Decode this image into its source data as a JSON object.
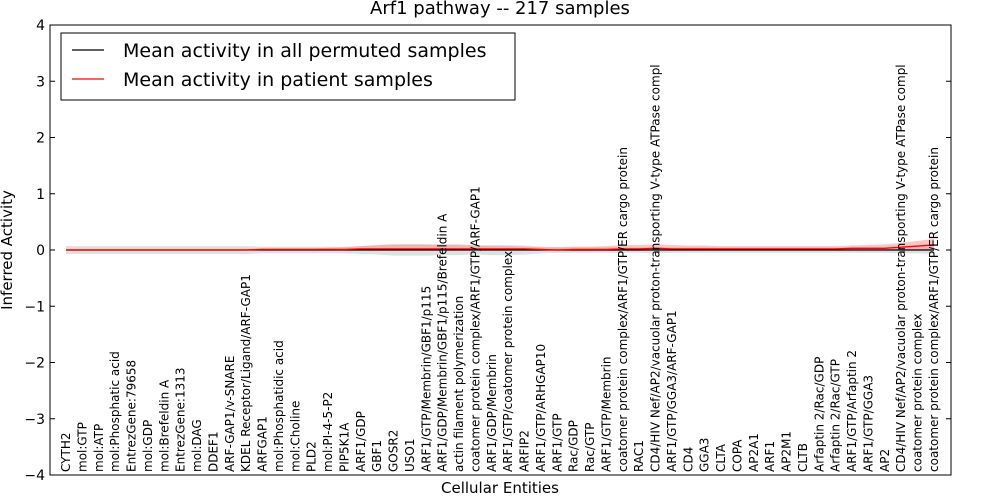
{
  "chart_data": {
    "type": "line",
    "title": "Arf1 pathway -- 217 samples",
    "xlabel": "Cellular Entities",
    "ylabel": "Inferred Activity",
    "ylim": [
      -4,
      4
    ],
    "yticks": [
      -4,
      -3,
      -2,
      -1,
      0,
      1,
      2,
      3,
      4
    ],
    "grid": false,
    "legend_position": "top-left",
    "categories": [
      "CYTH2",
      "mol:GTP",
      "mol:ATP",
      "mol:Phosphatic acid",
      "EntrezGene:79658",
      "mol:GDP",
      "mol:Brefeldin A",
      "EntrezGene:1313",
      "mol:DAG",
      "DDEF1",
      "ARF-GAP1/v-SNARE",
      "KDEL Receptor/Ligand/ARF-GAP1",
      "ARFGAP1",
      "mol:Phosphatidic acid",
      "mol:Choline",
      "PLD2",
      "mol:PI-4-5-P2",
      "PIP5K1A",
      "ARF1/GDP",
      "GBF1",
      "GOSR2",
      "USO1",
      "ARF1/GTP/Membrin/GBF1/p115",
      "ARF1/GDP/Membrin/GBF1/p115/Brefeldin A",
      "actin filament polymerization",
      "coatomer protein complex/ARF1/GTP/ARF-GAP1",
      "ARF1/GDP/Membrin",
      "ARF1/GTP/coatomer protein complex",
      "ARFIP2",
      "ARF1/GTP/ARHGAP10",
      "ARF1/GTP",
      "Rac/GDP",
      "Rac/GTP",
      "ARF1/GTP/Membrin",
      "coatomer protein complex/ARF1/GTP/ER cargo protein",
      "RAC1",
      "CD4/HIV Nef/AP2/vacuolar proton-transporting V-type ATPase compl",
      "ARF1/GTP/GGA3/ARF-GAP1",
      "CD4",
      "GGA3",
      "CLTA",
      "COPA",
      "AP2A1",
      "ARF1",
      "AP2M1",
      "CLTB",
      "Arfaptin 2/Rac/GDP",
      "Arfaptin 2/Rac/GTP",
      "ARF1/GTP/Arfaptin 2",
      "ARF1/GTP/GGA3",
      "AP2",
      "CD4/HIV Nef/AP2/vacuolar proton-transporting V-type ATPase compl",
      "coatomer protein complex",
      "coatomer protein complex/ARF1/GTP/ER cargo protein"
    ],
    "series": [
      {
        "name": "Mean activity in all permuted samples",
        "color": "#000000",
        "values": [
          0,
          0,
          0,
          0,
          0,
          0,
          0,
          0,
          0,
          0,
          0,
          0,
          0,
          0,
          0,
          0,
          0,
          0,
          0,
          0,
          0,
          0,
          0,
          0,
          0,
          0,
          0,
          0,
          0,
          0,
          0,
          0,
          0,
          0,
          0,
          0,
          0,
          0,
          0,
          0,
          0,
          0,
          0,
          0,
          0,
          0,
          0,
          0,
          0,
          0,
          0,
          0,
          0,
          0
        ],
        "band_low": [
          -0.07,
          -0.07,
          -0.07,
          -0.07,
          -0.07,
          -0.07,
          -0.07,
          -0.07,
          -0.07,
          -0.07,
          -0.07,
          -0.07,
          -0.06,
          -0.06,
          -0.06,
          -0.06,
          -0.06,
          -0.06,
          -0.07,
          -0.08,
          -0.1,
          -0.1,
          -0.1,
          -0.09,
          -0.09,
          -0.08,
          -0.09,
          -0.09,
          -0.08,
          -0.06,
          -0.05,
          -0.05,
          -0.05,
          -0.05,
          -0.05,
          -0.05,
          -0.06,
          -0.05,
          -0.05,
          -0.05,
          -0.05,
          -0.05,
          -0.05,
          -0.05,
          -0.05,
          -0.05,
          -0.05,
          -0.05,
          -0.05,
          -0.05,
          -0.05,
          -0.06,
          -0.06,
          -0.07
        ],
        "band_high": [
          0.07,
          0.07,
          0.07,
          0.07,
          0.07,
          0.07,
          0.07,
          0.07,
          0.07,
          0.07,
          0.07,
          0.07,
          0.06,
          0.06,
          0.06,
          0.06,
          0.06,
          0.06,
          0.07,
          0.08,
          0.1,
          0.1,
          0.1,
          0.09,
          0.09,
          0.08,
          0.09,
          0.09,
          0.08,
          0.06,
          0.05,
          0.05,
          0.05,
          0.05,
          0.05,
          0.05,
          0.06,
          0.05,
          0.05,
          0.05,
          0.05,
          0.05,
          0.05,
          0.05,
          0.05,
          0.05,
          0.05,
          0.05,
          0.05,
          0.05,
          0.05,
          0.06,
          0.06,
          0.07
        ]
      },
      {
        "name": "Mean activity in patient samples",
        "color": "#ff0000",
        "values": [
          0,
          0,
          0,
          0,
          0,
          0,
          0,
          0,
          0,
          0,
          0,
          0,
          0.01,
          0.01,
          0.01,
          0.01,
          0.01,
          0.01,
          0.02,
          0.02,
          0.02,
          0.02,
          0.02,
          0.02,
          0.02,
          0.02,
          0.02,
          0.02,
          0.02,
          0.01,
          0,
          0.01,
          0.01,
          0.01,
          0.02,
          0.02,
          0.03,
          0.02,
          0.02,
          0.02,
          0.02,
          0.02,
          0.02,
          0.02,
          0.02,
          0.02,
          0.02,
          0.02,
          0.03,
          0.03,
          0.03,
          0.05,
          0.07,
          0.09
        ],
        "band_low": [
          0,
          0,
          0,
          0,
          0,
          0,
          0,
          0,
          0,
          0,
          0,
          0,
          0,
          0,
          0,
          0,
          0,
          0,
          0,
          0,
          0,
          0,
          0,
          0,
          0,
          0,
          0,
          0,
          0,
          0,
          -0.02,
          -0.02,
          -0.02,
          -0.02,
          -0.01,
          -0.01,
          0,
          0,
          0,
          0,
          0,
          0,
          0,
          0,
          0,
          0,
          0,
          0,
          0,
          0,
          0,
          0,
          0,
          0
        ],
        "band_high": [
          0.02,
          0.02,
          0.02,
          0.02,
          0.02,
          0.02,
          0.02,
          0.02,
          0.02,
          0.02,
          0.02,
          0.02,
          0.03,
          0.03,
          0.03,
          0.03,
          0.04,
          0.05,
          0.07,
          0.09,
          0.1,
          0.1,
          0.1,
          0.1,
          0.1,
          0.08,
          0.07,
          0.07,
          0.06,
          0.05,
          0.05,
          0.06,
          0.06,
          0.07,
          0.09,
          0.09,
          0.1,
          0.09,
          0.08,
          0.08,
          0.07,
          0.07,
          0.07,
          0.07,
          0.07,
          0.07,
          0.07,
          0.07,
          0.08,
          0.09,
          0.1,
          0.13,
          0.16,
          0.2
        ]
      }
    ]
  }
}
